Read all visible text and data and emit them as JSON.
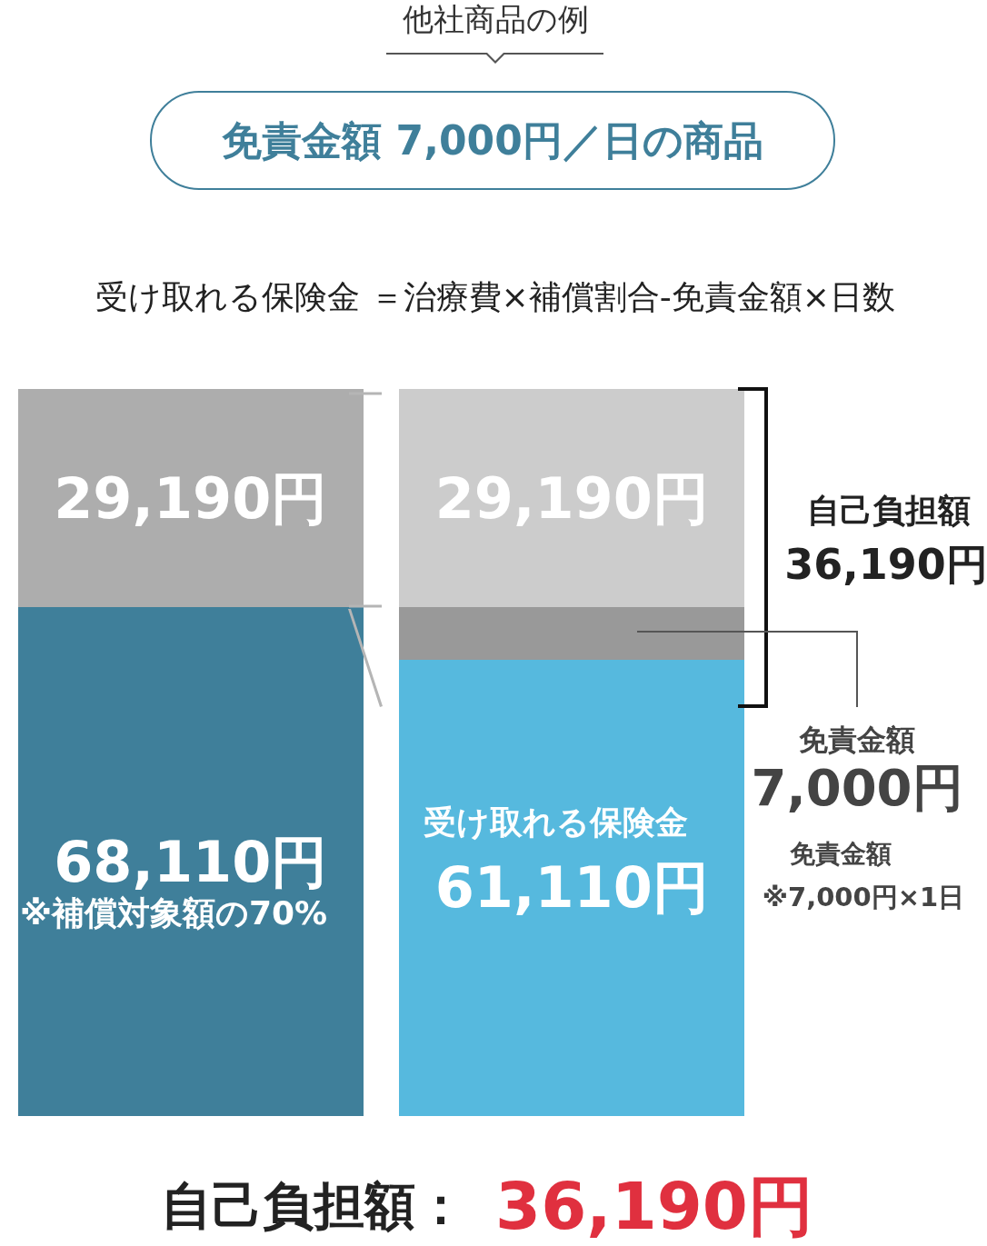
{
  "chart_data": {
    "type": "bar",
    "title": "他社商品の例",
    "subtitle": "免責金額 7,000円／日の商品",
    "categories": [
      null,
      null
    ],
    "stacked": true,
    "series": [
      {
        "colors": [
          "#3f7f9a",
          "#56b9de"
        ],
        "values": [
          68110,
          61110
        ],
        "value_labels": [
          "68,110円",
          "61,110円"
        ]
      },
      {
        "colors": [
          "#999999",
          "#999999"
        ],
        "values": [
          null,
          7000
        ],
        "value_labels": [
          null,
          null
        ]
      },
      {
        "colors": [
          "#adadad",
          "#cccccc"
        ],
        "values": [
          29190,
          29190
        ],
        "value_labels": [
          "29,190円",
          "29,190円"
        ]
      }
    ],
    "annotations": [
      "受け取れる保険金 ＝治療費×補償割合-免責金額×日数",
      "※補償対象額の70%",
      "受け取れる保険金",
      "自己負担額",
      "36,190円",
      "免責金額",
      "7,000円",
      "免責金額",
      "※7,000円×1日",
      "自己負担額：",
      "36,190円"
    ]
  }
}
